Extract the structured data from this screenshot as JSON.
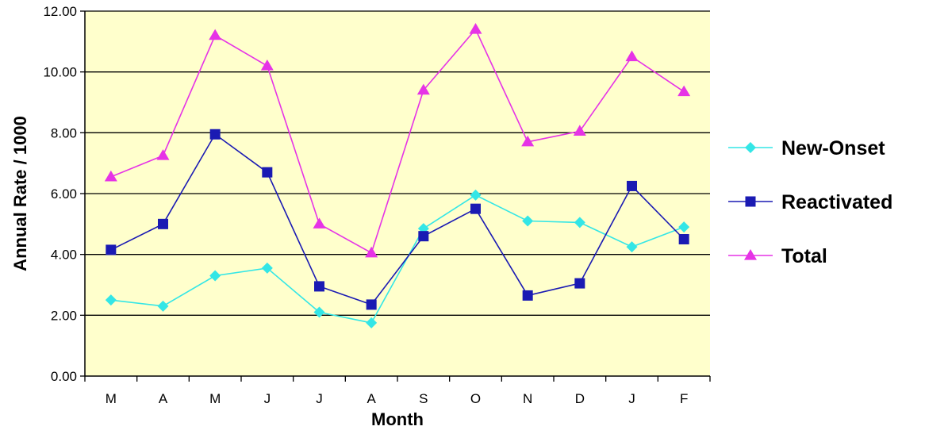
{
  "chart_data": {
    "type": "line",
    "xlabel": "Month",
    "ylabel": "Annual Rate / 1000",
    "categories": [
      "M",
      "A",
      "M",
      "J",
      "J",
      "A",
      "S",
      "O",
      "N",
      "D",
      "J",
      "F"
    ],
    "ylim": [
      0,
      12
    ],
    "yticks": [
      "0.00",
      "2.00",
      "4.00",
      "6.00",
      "8.00",
      "10.00",
      "12.00"
    ],
    "grid": true,
    "legend_position": "right",
    "plot_background": "#FFFFCC",
    "series": [
      {
        "name": "New-Onset",
        "color": "#33E6E6",
        "marker": "diamond",
        "values": [
          2.5,
          2.3,
          3.3,
          3.55,
          2.1,
          1.75,
          4.85,
          5.95,
          5.1,
          5.05,
          4.25,
          4.9
        ]
      },
      {
        "name": "Reactivated",
        "color": "#1A1AB3",
        "marker": "square",
        "values": [
          4.15,
          5.0,
          7.95,
          6.7,
          2.95,
          2.35,
          4.6,
          5.5,
          2.65,
          3.05,
          6.25,
          4.5
        ]
      },
      {
        "name": "Total",
        "color": "#E633E6",
        "marker": "triangle",
        "values": [
          6.55,
          7.25,
          11.2,
          10.2,
          5.0,
          4.05,
          9.4,
          11.4,
          7.7,
          8.05,
          10.5,
          9.35
        ]
      }
    ]
  }
}
